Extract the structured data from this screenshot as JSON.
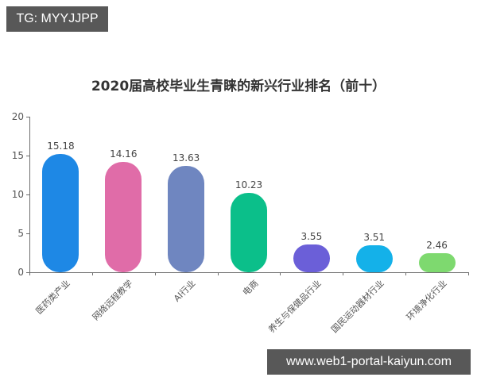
{
  "watermarks": {
    "top": "TG: MYYJJPP",
    "bottom": "www.web1-portal-kaiyun.com"
  },
  "chart_data": {
    "type": "bar",
    "title": "2020届高校毕业生青睐的新兴行业排名（前十）",
    "xlabel": "",
    "ylabel": "",
    "ylim": [
      0,
      20
    ],
    "yticks": [
      0,
      5,
      10,
      15,
      20
    ],
    "grid": false,
    "legend": "none",
    "categories": [
      "医药类产业",
      "网络远程教学",
      "AI行业",
      "电商",
      "养生与保健品行业",
      "国民运动器材行业",
      "环境净化行业"
    ],
    "values": [
      15.18,
      14.16,
      13.63,
      10.23,
      3.55,
      3.51,
      2.46
    ],
    "value_labels": [
      "15.18",
      "14.16",
      "13.63",
      "10.23",
      "3.55",
      "3.51",
      "2.46"
    ],
    "colors": [
      "#1e88e5",
      "#e06ca8",
      "#6f86c0",
      "#0bbf8a",
      "#6b5fd8",
      "#14b1e9",
      "#7ed96f"
    ]
  }
}
